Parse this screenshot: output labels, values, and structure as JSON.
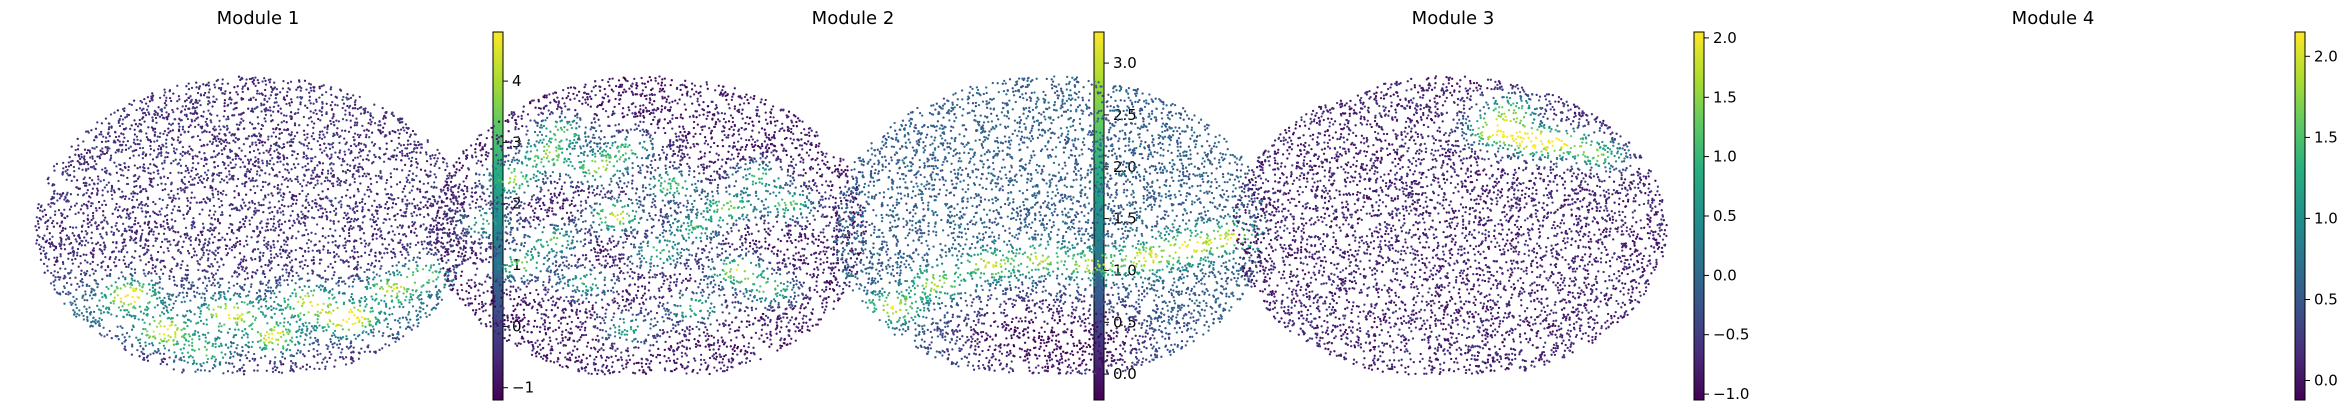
{
  "figure": {
    "colormap": "viridis",
    "colormap_stops": [
      "#440154",
      "#472d7b",
      "#3b528b",
      "#2c728e",
      "#21918c",
      "#28ae80",
      "#5ec962",
      "#addc30",
      "#fde725"
    ]
  },
  "chart_data": [
    {
      "type": "scatter",
      "title": "Module 1",
      "colorbar": {
        "range": [
          -1.2,
          4.8
        ],
        "ticks": [
          -1,
          0,
          1,
          2,
          3,
          4
        ],
        "tick_labels": [
          "−1",
          "0",
          "1",
          "2",
          "3",
          "4"
        ]
      },
      "pattern": "High scores concentrated in the lower third of the tissue section, forming a broad band with several yellow hotspots",
      "background_score": -0.4,
      "hotspots": [
        {
          "x": 0.22,
          "y": 0.74,
          "score": 4.5
        },
        {
          "x": 0.3,
          "y": 0.86,
          "score": 4.2
        },
        {
          "x": 0.45,
          "y": 0.8,
          "score": 3.8
        },
        {
          "x": 0.55,
          "y": 0.88,
          "score": 4.0
        },
        {
          "x": 0.63,
          "y": 0.76,
          "score": 3.5
        },
        {
          "x": 0.72,
          "y": 0.82,
          "score": 4.6
        },
        {
          "x": 0.82,
          "y": 0.72,
          "score": 3.4
        },
        {
          "x": 0.9,
          "y": 0.67,
          "score": 3.2
        },
        {
          "x": 0.39,
          "y": 0.93,
          "score": 3.0
        }
      ],
      "band": {
        "y_center": 0.8,
        "width": 0.15,
        "score": 1.6
      }
    },
    {
      "type": "scatter",
      "title": "Module 2",
      "colorbar": {
        "range": [
          -0.25,
          3.3
        ],
        "ticks": [
          0.0,
          0.5,
          1.0,
          1.5,
          2.0,
          2.5,
          3.0
        ],
        "tick_labels": [
          "0.0",
          "0.5",
          "1.0",
          "1.5",
          "2.0",
          "2.5",
          "3.0"
        ]
      },
      "pattern": "Many small scattered circular clusters of high score across the upper and middle tissue",
      "background_score": 0.0,
      "hotspots": [
        {
          "x": 0.18,
          "y": 0.36,
          "score": 2.8
        },
        {
          "x": 0.26,
          "y": 0.28,
          "score": 2.6
        },
        {
          "x": 0.3,
          "y": 0.2,
          "score": 2.2
        },
        {
          "x": 0.38,
          "y": 0.32,
          "score": 2.9
        },
        {
          "x": 0.45,
          "y": 0.26,
          "score": 2.1
        },
        {
          "x": 0.42,
          "y": 0.48,
          "score": 3.1
        },
        {
          "x": 0.55,
          "y": 0.38,
          "score": 2.4
        },
        {
          "x": 0.28,
          "y": 0.56,
          "score": 2.3
        },
        {
          "x": 0.2,
          "y": 0.64,
          "score": 2.5
        },
        {
          "x": 0.35,
          "y": 0.7,
          "score": 2.0
        },
        {
          "x": 0.52,
          "y": 0.6,
          "score": 2.2
        },
        {
          "x": 0.6,
          "y": 0.52,
          "score": 2.0
        },
        {
          "x": 0.68,
          "y": 0.45,
          "score": 2.7
        },
        {
          "x": 0.75,
          "y": 0.35,
          "score": 2.1
        },
        {
          "x": 0.82,
          "y": 0.44,
          "score": 2.4
        },
        {
          "x": 0.7,
          "y": 0.66,
          "score": 3.0
        },
        {
          "x": 0.78,
          "y": 0.72,
          "score": 2.3
        },
        {
          "x": 0.6,
          "y": 0.78,
          "score": 2.1
        },
        {
          "x": 0.45,
          "y": 0.85,
          "score": 1.9
        },
        {
          "x": 0.12,
          "y": 0.5,
          "score": 2.0
        }
      ]
    },
    {
      "type": "scatter",
      "title": "Module 3",
      "colorbar": {
        "range": [
          -1.05,
          2.05
        ],
        "ticks": [
          -1.0,
          -0.5,
          0.0,
          0.5,
          1.0,
          1.5,
          2.0
        ],
        "tick_labels": [
          "−1.0",
          "−0.5",
          "0.0",
          "0.5",
          "1.0",
          "1.5",
          "2.0"
        ]
      },
      "pattern": "A diagonal high-score stripe running across the middle-lower tissue from left to right",
      "background_score": -0.1,
      "hotspots": [
        {
          "x": 0.14,
          "y": 0.78,
          "score": 2.0
        },
        {
          "x": 0.24,
          "y": 0.7,
          "score": 1.8
        },
        {
          "x": 0.36,
          "y": 0.64,
          "score": 1.9
        },
        {
          "x": 0.48,
          "y": 0.62,
          "score": 1.7
        },
        {
          "x": 0.6,
          "y": 0.64,
          "score": 1.8
        },
        {
          "x": 0.72,
          "y": 0.62,
          "score": 2.0
        },
        {
          "x": 0.82,
          "y": 0.58,
          "score": 2.0
        },
        {
          "x": 0.92,
          "y": 0.55,
          "score": 1.9
        }
      ],
      "low_regions": [
        {
          "x": 0.4,
          "y": 0.88,
          "score": -0.9
        },
        {
          "x": 0.6,
          "y": 0.9,
          "score": -0.9
        }
      ]
    },
    {
      "type": "scatter",
      "title": "Module 4",
      "colorbar": {
        "range": [
          -0.12,
          2.15
        ],
        "ticks": [
          0.0,
          0.5,
          1.0,
          1.5,
          2.0
        ],
        "tick_labels": [
          "0.0",
          "0.5",
          "1.0",
          "1.5",
          "2.0"
        ]
      },
      "pattern": "A small bright region near the top-right edge of the tissue; rest is low",
      "background_score": 0.1,
      "hotspots": [
        {
          "x": 0.6,
          "y": 0.2,
          "score": 2.1
        },
        {
          "x": 0.68,
          "y": 0.23,
          "score": 2.0
        },
        {
          "x": 0.76,
          "y": 0.24,
          "score": 1.9
        },
        {
          "x": 0.85,
          "y": 0.28,
          "score": 1.5
        },
        {
          "x": 0.64,
          "y": 0.13,
          "score": 1.6
        }
      ]
    }
  ]
}
